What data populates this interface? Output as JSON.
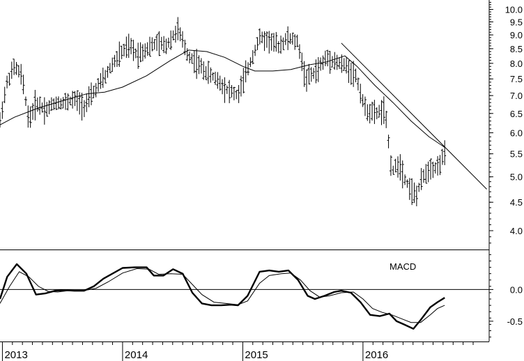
{
  "chart_data": [
    {
      "type": "ohlc",
      "scale": "log",
      "ylim": [
        3.7,
        10.4
      ],
      "y_ticks": [
        {
          "value": 4.0,
          "label": "4.0"
        },
        {
          "value": 4.5,
          "label": "4.5"
        },
        {
          "value": 5.0,
          "label": "5.0"
        },
        {
          "value": 5.5,
          "label": "5.5"
        },
        {
          "value": 6.0,
          "label": "6.0"
        },
        {
          "value": 6.5,
          "label": "6.5"
        },
        {
          "value": 7.0,
          "label": "7.0"
        },
        {
          "value": 7.5,
          "label": "7.5"
        },
        {
          "value": 8.0,
          "label": "8.0"
        },
        {
          "value": 8.5,
          "label": "8.5"
        },
        {
          "value": 9.0,
          "label": "9.0"
        },
        {
          "value": 9.5,
          "label": "9.5"
        },
        {
          "value": 10.0,
          "label": "10.0"
        }
      ],
      "x_ticks": [
        {
          "value": 2013.0,
          "label": "2013"
        },
        {
          "value": 2014.0,
          "label": "2014"
        },
        {
          "value": 2015.0,
          "label": "2015"
        },
        {
          "value": 2016.0,
          "label": "2016"
        }
      ],
      "xlim": [
        2012.98,
        2017.05
      ],
      "price_anchors": [
        [
          2012.98,
          6.3
        ],
        [
          2013.04,
          7.4
        ],
        [
          2013.1,
          7.9
        ],
        [
          2013.16,
          7.6
        ],
        [
          2013.22,
          6.3
        ],
        [
          2013.28,
          6.8
        ],
        [
          2013.36,
          6.6
        ],
        [
          2013.44,
          6.8
        ],
        [
          2013.52,
          6.8
        ],
        [
          2013.6,
          6.9
        ],
        [
          2013.68,
          6.7
        ],
        [
          2013.74,
          7.0
        ],
        [
          2013.8,
          7.3
        ],
        [
          2013.86,
          7.6
        ],
        [
          2013.92,
          8.0
        ],
        [
          2014.0,
          8.4
        ],
        [
          2014.06,
          8.6
        ],
        [
          2014.12,
          8.3
        ],
        [
          2014.2,
          8.5
        ],
        [
          2014.28,
          8.7
        ],
        [
          2014.36,
          8.6
        ],
        [
          2014.46,
          9.2
        ],
        [
          2014.54,
          8.3
        ],
        [
          2014.62,
          8.0
        ],
        [
          2014.7,
          7.7
        ],
        [
          2014.78,
          7.5
        ],
        [
          2014.86,
          7.2
        ],
        [
          2014.96,
          7.0
        ],
        [
          2015.06,
          8.0
        ],
        [
          2015.14,
          8.9
        ],
        [
          2015.22,
          8.8
        ],
        [
          2015.3,
          8.6
        ],
        [
          2015.38,
          8.9
        ],
        [
          2015.46,
          8.7
        ],
        [
          2015.52,
          7.5
        ],
        [
          2015.6,
          7.7
        ],
        [
          2015.7,
          8.2
        ],
        [
          2015.8,
          8.0
        ],
        [
          2015.86,
          7.9
        ],
        [
          2015.94,
          7.6
        ],
        [
          2016.02,
          6.6
        ],
        [
          2016.1,
          6.5
        ],
        [
          2016.18,
          6.6
        ],
        [
          2016.24,
          5.1
        ],
        [
          2016.3,
          5.3
        ],
        [
          2016.36,
          4.9
        ],
        [
          2016.44,
          4.6
        ],
        [
          2016.5,
          5.0
        ],
        [
          2016.56,
          5.2
        ],
        [
          2016.62,
          5.2
        ],
        [
          2016.68,
          5.5
        ]
      ],
      "moving_average": [
        [
          2012.98,
          6.2
        ],
        [
          2013.1,
          6.4
        ],
        [
          2013.3,
          6.65
        ],
        [
          2013.5,
          6.85
        ],
        [
          2013.7,
          7.05
        ],
        [
          2013.85,
          7.1
        ],
        [
          2014.0,
          7.25
        ],
        [
          2014.2,
          7.6
        ],
        [
          2014.4,
          8.1
        ],
        [
          2014.55,
          8.45
        ],
        [
          2014.7,
          8.4
        ],
        [
          2014.85,
          8.2
        ],
        [
          2015.0,
          7.9
        ],
        [
          2015.1,
          7.75
        ],
        [
          2015.25,
          7.75
        ],
        [
          2015.4,
          7.8
        ],
        [
          2015.55,
          7.95
        ],
        [
          2015.7,
          8.05
        ],
        [
          2015.85,
          8.25
        ],
        [
          2015.95,
          7.9
        ],
        [
          2016.1,
          7.3
        ],
        [
          2016.25,
          6.8
        ],
        [
          2016.4,
          6.3
        ],
        [
          2016.55,
          5.9
        ],
        [
          2016.68,
          5.65
        ]
      ],
      "trendline": [
        [
          2015.82,
          8.7
        ],
        [
          2017.03,
          4.75
        ]
      ]
    },
    {
      "type": "line",
      "label": "MACD",
      "ylim": [
        -0.82,
        0.62
      ],
      "y_ticks": [
        {
          "value": -0.5,
          "label": "-0.5"
        },
        {
          "value": 0.0,
          "label": "0.0"
        }
      ],
      "zero_line": 0.0,
      "macd": [
        [
          2012.98,
          -0.15
        ],
        [
          2013.04,
          0.2
        ],
        [
          2013.12,
          0.4
        ],
        [
          2013.2,
          0.25
        ],
        [
          2013.28,
          -0.08
        ],
        [
          2013.36,
          -0.06
        ],
        [
          2013.44,
          -0.02
        ],
        [
          2013.52,
          -0.01
        ],
        [
          2013.6,
          -0.02
        ],
        [
          2013.68,
          -0.02
        ],
        [
          2013.76,
          0.05
        ],
        [
          2013.84,
          0.17
        ],
        [
          2014.0,
          0.34
        ],
        [
          2014.1,
          0.35
        ],
        [
          2014.2,
          0.35
        ],
        [
          2014.26,
          0.22
        ],
        [
          2014.34,
          0.22
        ],
        [
          2014.42,
          0.32
        ],
        [
          2014.5,
          0.25
        ],
        [
          2014.58,
          -0.05
        ],
        [
          2014.66,
          -0.22
        ],
        [
          2014.74,
          -0.25
        ],
        [
          2014.82,
          -0.25
        ],
        [
          2014.9,
          -0.24
        ],
        [
          2014.96,
          -0.25
        ],
        [
          2015.04,
          -0.1
        ],
        [
          2015.14,
          0.28
        ],
        [
          2015.22,
          0.3
        ],
        [
          2015.3,
          0.28
        ],
        [
          2015.38,
          0.3
        ],
        [
          2015.46,
          0.15
        ],
        [
          2015.54,
          -0.1
        ],
        [
          2015.6,
          -0.15
        ],
        [
          2015.68,
          -0.1
        ],
        [
          2015.76,
          -0.04
        ],
        [
          2015.82,
          -0.02
        ],
        [
          2015.9,
          -0.05
        ],
        [
          2015.98,
          -0.2
        ],
        [
          2016.06,
          -0.4
        ],
        [
          2016.14,
          -0.42
        ],
        [
          2016.22,
          -0.38
        ],
        [
          2016.28,
          -0.5
        ],
        [
          2016.34,
          -0.55
        ],
        [
          2016.42,
          -0.62
        ],
        [
          2016.48,
          -0.48
        ],
        [
          2016.56,
          -0.28
        ],
        [
          2016.62,
          -0.2
        ],
        [
          2016.68,
          -0.13
        ]
      ],
      "signal": [
        [
          2012.98,
          -0.22
        ],
        [
          2013.06,
          0.05
        ],
        [
          2013.14,
          0.28
        ],
        [
          2013.22,
          0.2
        ],
        [
          2013.3,
          0.05
        ],
        [
          2013.38,
          -0.03
        ],
        [
          2013.46,
          -0.04
        ],
        [
          2013.54,
          -0.02
        ],
        [
          2013.62,
          -0.02
        ],
        [
          2013.7,
          -0.01
        ],
        [
          2013.78,
          0.02
        ],
        [
          2013.88,
          0.12
        ],
        [
          2014.0,
          0.26
        ],
        [
          2014.12,
          0.33
        ],
        [
          2014.22,
          0.32
        ],
        [
          2014.3,
          0.24
        ],
        [
          2014.4,
          0.25
        ],
        [
          2014.5,
          0.24
        ],
        [
          2014.58,
          0.08
        ],
        [
          2014.66,
          -0.08
        ],
        [
          2014.76,
          -0.2
        ],
        [
          2014.86,
          -0.22
        ],
        [
          2014.96,
          -0.24
        ],
        [
          2015.04,
          -0.18
        ],
        [
          2015.14,
          0.1
        ],
        [
          2015.22,
          0.22
        ],
        [
          2015.32,
          0.25
        ],
        [
          2015.4,
          0.26
        ],
        [
          2015.48,
          0.15
        ],
        [
          2015.56,
          -0.02
        ],
        [
          2015.64,
          -0.12
        ],
        [
          2015.72,
          -0.1
        ],
        [
          2015.82,
          -0.05
        ],
        [
          2015.92,
          -0.04
        ],
        [
          2016.0,
          -0.15
        ],
        [
          2016.08,
          -0.3
        ],
        [
          2016.16,
          -0.36
        ],
        [
          2016.24,
          -0.4
        ],
        [
          2016.32,
          -0.46
        ],
        [
          2016.4,
          -0.52
        ],
        [
          2016.48,
          -0.52
        ],
        [
          2016.56,
          -0.4
        ],
        [
          2016.62,
          -0.3
        ],
        [
          2016.68,
          -0.25
        ]
      ]
    }
  ]
}
